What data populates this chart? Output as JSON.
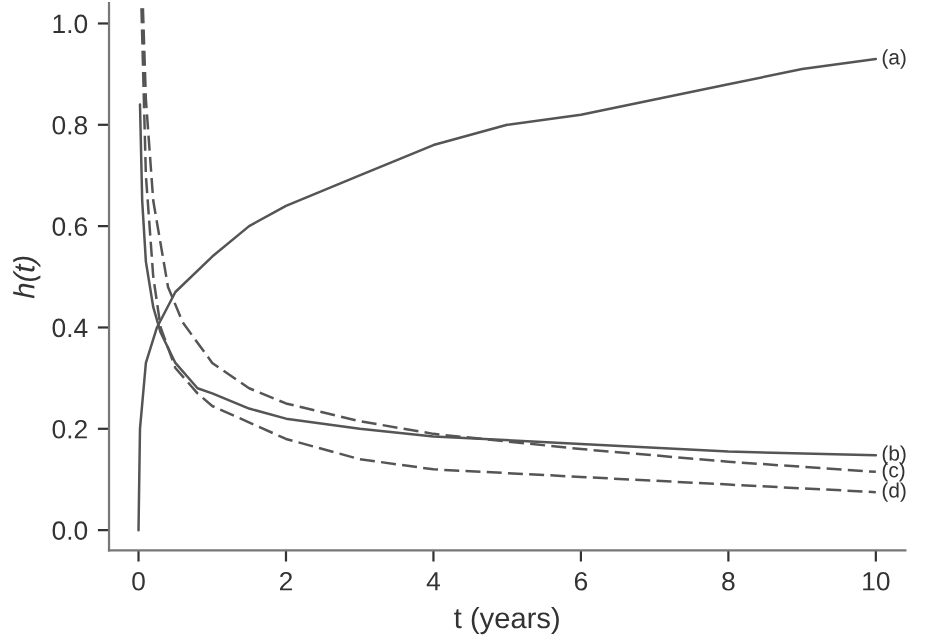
{
  "chart_data": {
    "type": "line",
    "xlabel": "t (years)",
    "ylabel": "h(t)",
    "xlim": [
      -0.4,
      10.4
    ],
    "ylim": [
      -0.04,
      1.04
    ],
    "xticks": [
      0,
      2,
      4,
      6,
      8,
      10
    ],
    "yticks": [
      {
        "value": 0,
        "label": "0.0"
      },
      0.2,
      0.4,
      0.6,
      0.8,
      {
        "value": 1,
        "label": "1.0"
      }
    ],
    "grid": false,
    "legend": false,
    "marker": "none",
    "series": [
      {
        "name": "(a)",
        "color": "#555555",
        "line_style": "solid",
        "x": [
          0,
          0.02,
          0.1,
          0.25,
          0.5,
          1,
          1.5,
          2,
          3,
          4,
          5,
          6,
          7,
          8,
          9,
          10
        ],
        "values": [
          0.0,
          0.2,
          0.33,
          0.4,
          0.47,
          0.54,
          0.6,
          0.64,
          0.7,
          0.76,
          0.8,
          0.82,
          0.85,
          0.88,
          0.91,
          0.93
        ]
      },
      {
        "name": "(b)",
        "color": "#555555",
        "line_style": "solid",
        "x": [
          0.02,
          0.05,
          0.1,
          0.2,
          0.3,
          0.5,
          0.8,
          1,
          1.5,
          2,
          3,
          4,
          6,
          8,
          10
        ],
        "values": [
          0.84,
          0.65,
          0.53,
          0.44,
          0.39,
          0.33,
          0.28,
          0.27,
          0.24,
          0.22,
          0.2,
          0.185,
          0.17,
          0.155,
          0.148
        ]
      },
      {
        "name": "(c)",
        "color": "#555555",
        "line_style": "dashed",
        "x": [
          0.06,
          0.1,
          0.2,
          0.4,
          0.6,
          1,
          1.5,
          2,
          3,
          4,
          6,
          8,
          10
        ],
        "values": [
          1.03,
          0.85,
          0.65,
          0.48,
          0.41,
          0.33,
          0.28,
          0.25,
          0.215,
          0.19,
          0.16,
          0.135,
          0.115
        ]
      },
      {
        "name": "(d)",
        "color": "#555555",
        "line_style": "dashed",
        "x": [
          0.04,
          0.1,
          0.2,
          0.3,
          0.5,
          0.8,
          1,
          2,
          3,
          4,
          6,
          8,
          10
        ],
        "values": [
          1.03,
          0.7,
          0.5,
          0.4,
          0.32,
          0.27,
          0.245,
          0.18,
          0.14,
          0.12,
          0.105,
          0.09,
          0.075
        ]
      }
    ]
  }
}
